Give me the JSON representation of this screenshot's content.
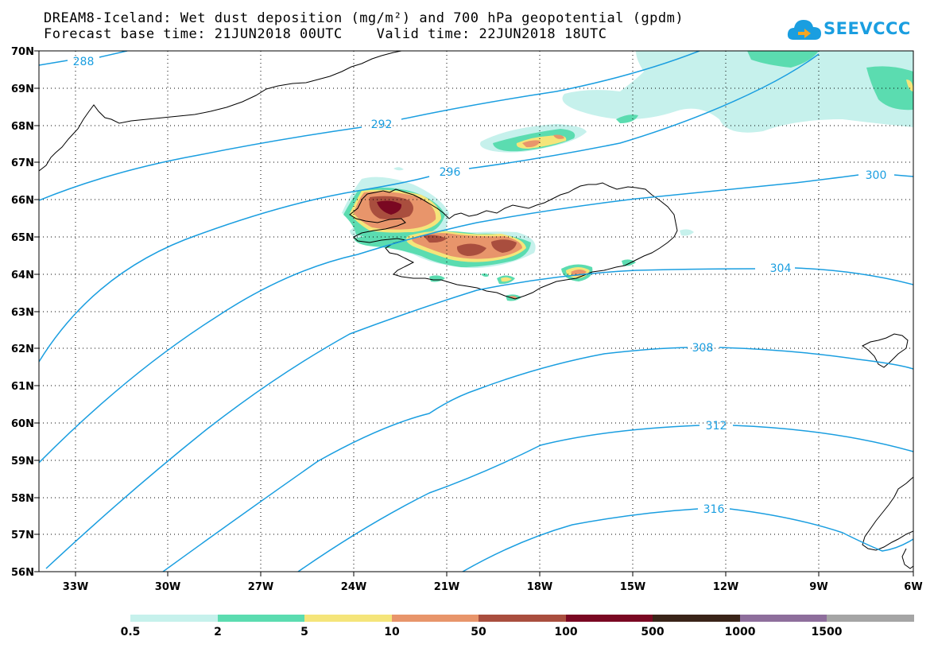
{
  "title_line1": "DREAM8-Iceland: Wet dust deposition (mg/m²) and 700 hPa geopotential (gpdm)",
  "title_line2": "Forecast base time: 21JUN2018 00UTC    Valid time: 22JUN2018 18UTC",
  "logo_text": "SEEVCCC",
  "map": {
    "lat_labels": [
      "70N",
      "69N",
      "68N",
      "67N",
      "66N",
      "65N",
      "64N",
      "63N",
      "62N",
      "61N",
      "60N",
      "59N",
      "58N",
      "57N",
      "56N"
    ],
    "lon_labels": [
      "33W",
      "30W",
      "27W",
      "24W",
      "21W",
      "18W",
      "15W",
      "12W",
      "9W",
      "6W"
    ],
    "contour_labels": [
      "288",
      "292",
      "296",
      "300",
      "304",
      "308",
      "312",
      "316"
    ],
    "contour_color": "#1a9ee0",
    "coastline_color": "#000000"
  },
  "colorbar": {
    "labels": [
      "0.5",
      "2",
      "5",
      "10",
      "50",
      "100",
      "500",
      "1000",
      "1500"
    ],
    "colors": [
      "#c6f1ec",
      "#5bdcb0",
      "#f5e57a",
      "#e8956b",
      "#a94e3e",
      "#7a0822",
      "#3a2418",
      "#8e6e9c",
      "#a5a5a5"
    ]
  }
}
